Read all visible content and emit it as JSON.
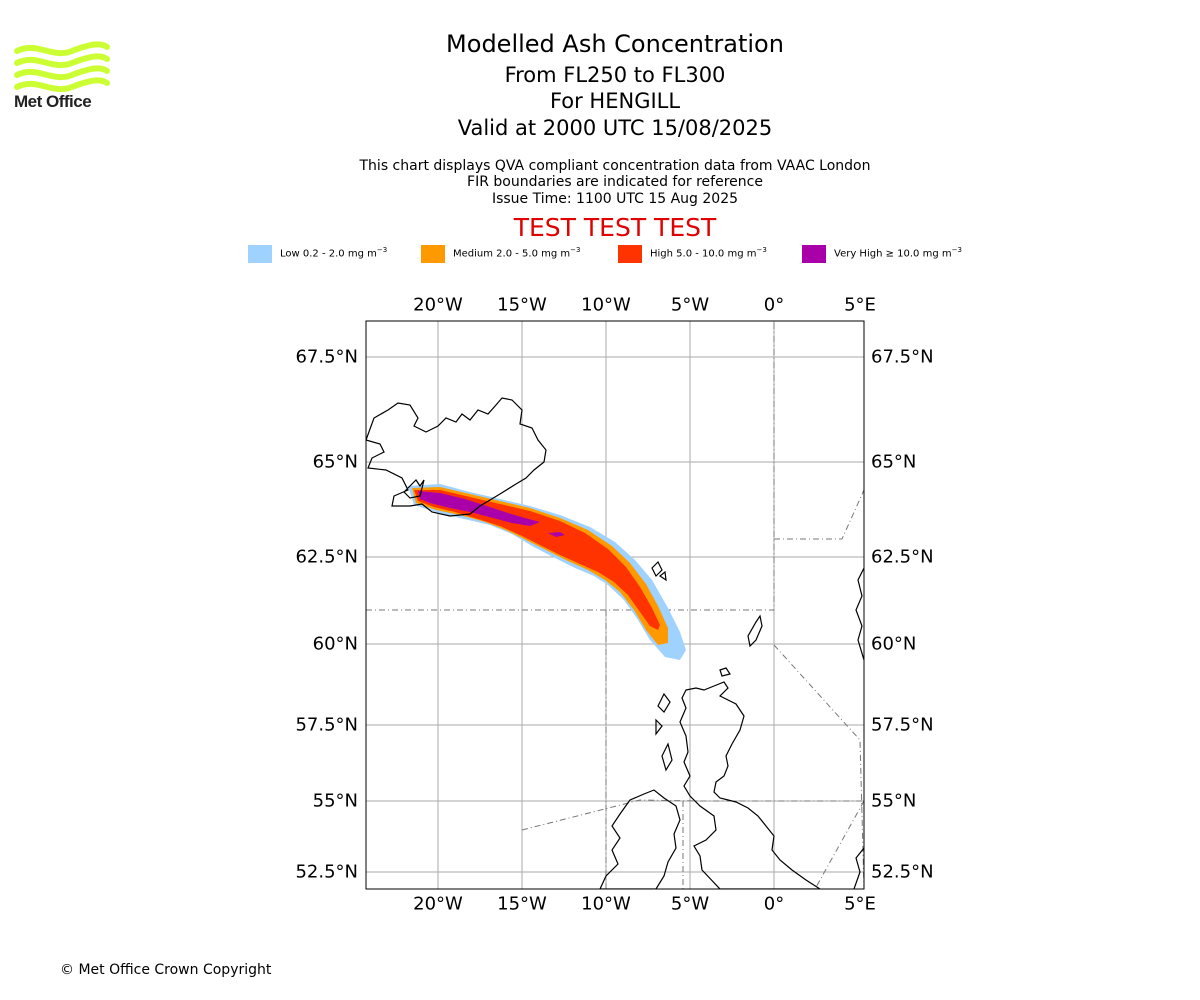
{
  "header": {
    "title": "Modelled Ash Concentration",
    "level_range": "From FL250 to FL300",
    "volcano": "For HENGILL",
    "valid_time": "Valid at 2000 UTC 15/08/2025",
    "note_1": "This chart displays QVA compliant concentration data from VAAC London",
    "note_2": "FIR boundaries are indicated for reference",
    "issue_time": "Issue Time: 1100 UTC 15 Aug 2025",
    "test_banner": "TEST TEST TEST"
  },
  "logo": {
    "text": "Met Office",
    "color": "#ccff33"
  },
  "legend": [
    {
      "label_prefix": "Low 0.2 - 2.0 mg m",
      "unit_exp": "−3",
      "color": "#a0d2ff"
    },
    {
      "label_prefix": "Medium 2.0 - 5.0 mg m",
      "unit_exp": "−3",
      "color": "#ff9900"
    },
    {
      "label_prefix": "High 5.0 - 10.0 mg m",
      "unit_exp": "−3",
      "color": "#ff3300"
    },
    {
      "label_prefix": "Very High ≥ 10.0 mg m",
      "unit_exp": "−3",
      "color": "#aa00aa"
    }
  ],
  "map": {
    "lon_ticks": [
      "20°W",
      "15°W",
      "10°W",
      "5°W",
      "0°",
      "5°E"
    ],
    "lat_ticks": [
      "67.5°N",
      "65°N",
      "62.5°N",
      "60°N",
      "57.5°N",
      "55°N",
      "52.5°N"
    ],
    "lon_range": [
      -24.3,
      5.3
    ],
    "lat_range": [
      51.7,
      68.3
    ]
  },
  "copyright": "© Met Office Crown Copyright"
}
